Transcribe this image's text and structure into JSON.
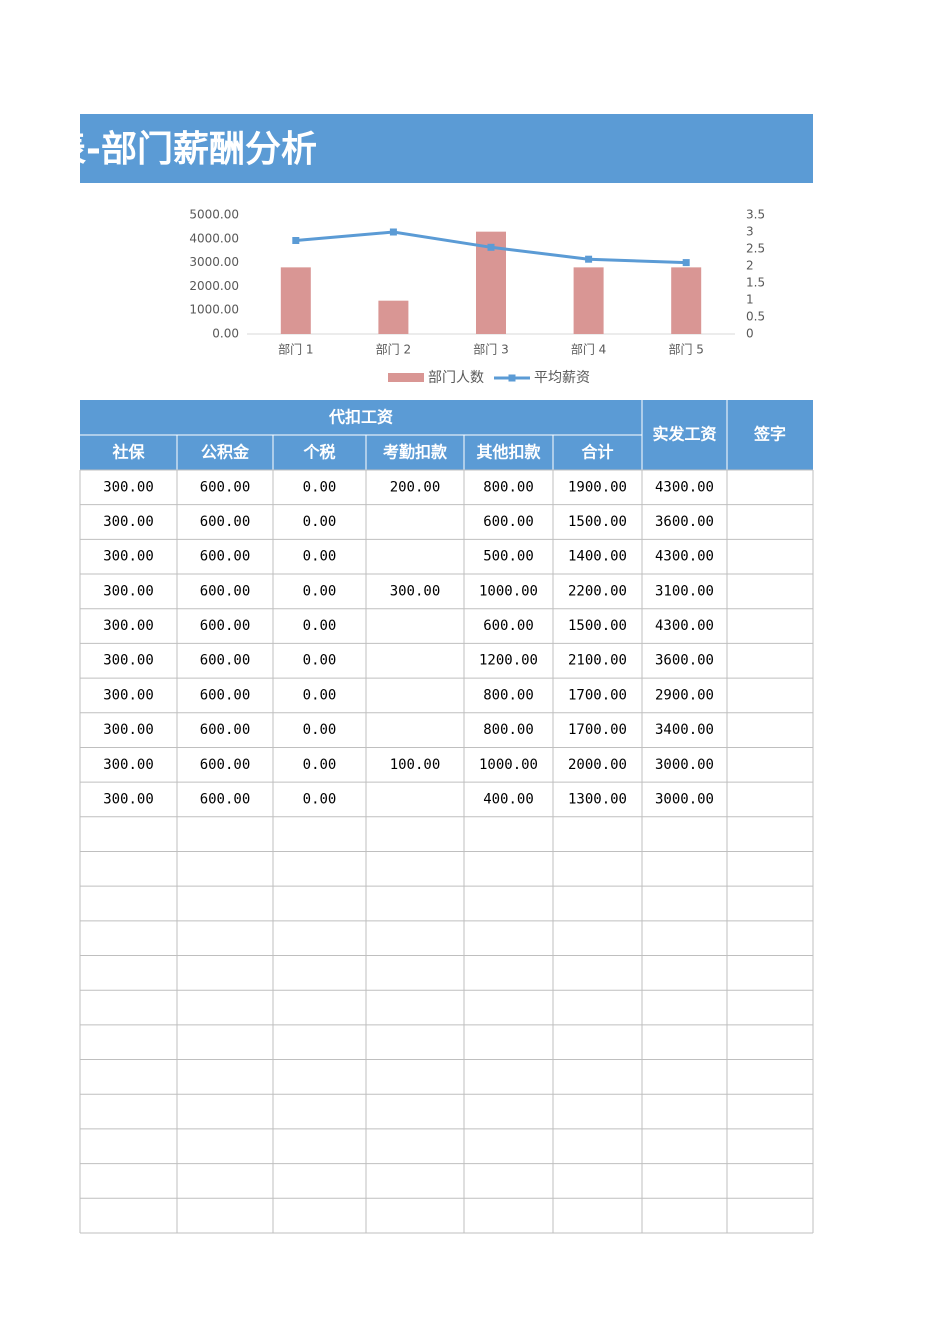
{
  "header": {
    "title": "表-部门薪酬分析"
  },
  "chart_data": {
    "type": "bar-line",
    "categories": [
      "部门 1",
      "部门 2",
      "部门 3",
      "部门 4",
      "部门 5"
    ],
    "series": [
      {
        "name": "部门人数",
        "type": "bar",
        "color": "#d99694",
        "values": [
          2800,
          1400,
          4300,
          2800,
          2800
        ]
      },
      {
        "name": "平均薪资",
        "type": "line",
        "axis": "y2",
        "color": "#5b9bd5",
        "values": [
          2.75,
          3.0,
          2.55,
          2.2,
          2.1
        ]
      }
    ],
    "ylim": [
      0,
      5000
    ],
    "yticks": [
      {
        "value": 0,
        "label": "0.00"
      },
      {
        "value": 1000,
        "label": "1000.00"
      },
      {
        "value": 2000,
        "label": "2000.00"
      },
      {
        "value": 3000,
        "label": "3000.00"
      },
      {
        "value": 4000,
        "label": "4000.00"
      },
      {
        "value": 5000,
        "label": "5000.00"
      }
    ],
    "y2lim": [
      0,
      3.5
    ],
    "y2ticks": [
      0,
      0.5,
      1,
      1.5,
      2,
      2.5,
      3,
      3.5
    ],
    "legend": "bottom"
  },
  "table": {
    "group_header": "代扣工资",
    "sub_headers": [
      "社保",
      "公积金",
      "个税",
      "考勤扣款",
      "其他扣款",
      "合计"
    ],
    "side_headers": [
      "实发工资",
      "签字"
    ],
    "rows": [
      [
        "300.00",
        "600.00",
        "0.00",
        "200.00",
        "800.00",
        "1900.00",
        "4300.00",
        null
      ],
      [
        "300.00",
        "600.00",
        "0.00",
        null,
        "600.00",
        "1500.00",
        "3600.00",
        null
      ],
      [
        "300.00",
        "600.00",
        "0.00",
        null,
        "500.00",
        "1400.00",
        "4300.00",
        null
      ],
      [
        "300.00",
        "600.00",
        "0.00",
        "300.00",
        "1000.00",
        "2200.00",
        "3100.00",
        null
      ],
      [
        "300.00",
        "600.00",
        "0.00",
        null,
        "600.00",
        "1500.00",
        "4300.00",
        null
      ],
      [
        "300.00",
        "600.00",
        "0.00",
        null,
        "1200.00",
        "2100.00",
        "3600.00",
        null
      ],
      [
        "300.00",
        "600.00",
        "0.00",
        null,
        "800.00",
        "1700.00",
        "2900.00",
        null
      ],
      [
        "300.00",
        "600.00",
        "0.00",
        null,
        "800.00",
        "1700.00",
        "3400.00",
        null
      ],
      [
        "300.00",
        "600.00",
        "0.00",
        "100.00",
        "1000.00",
        "2000.00",
        "3000.00",
        null
      ],
      [
        "300.00",
        "600.00",
        "0.00",
        null,
        "400.00",
        "1300.00",
        "3000.00",
        null
      ]
    ]
  }
}
